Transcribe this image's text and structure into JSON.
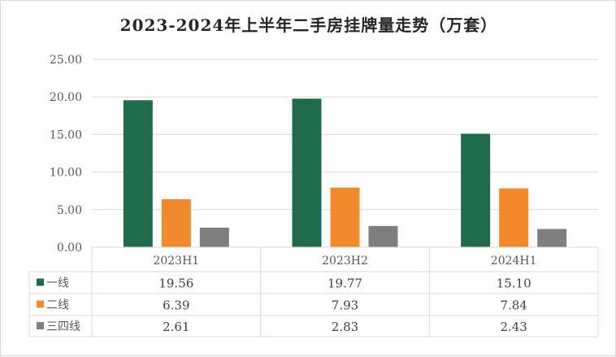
{
  "chart_data": {
    "type": "bar",
    "title": "2023-2024年上半年二手房挂牌量走势（万套）",
    "categories": [
      "2023H1",
      "2023H2",
      "2024H1"
    ],
    "series": [
      {
        "name": "一线",
        "values": [
          19.56,
          19.77,
          15.1
        ],
        "display": [
          "19.56",
          "19.77",
          "15.10"
        ],
        "color": "#1f6b4a"
      },
      {
        "name": "二线",
        "values": [
          6.39,
          7.93,
          7.84
        ],
        "display": [
          "6.39",
          "7.93",
          "7.84"
        ],
        "color": "#f08a2c"
      },
      {
        "name": "三四线",
        "values": [
          2.61,
          2.83,
          2.43
        ],
        "display": [
          "2.61",
          "2.83",
          "2.43"
        ],
        "color": "#7f7f7f"
      }
    ],
    "ylim": [
      0,
      25
    ],
    "yticks": [
      "0.00",
      "5.00",
      "10.00",
      "15.00",
      "20.00",
      "25.00"
    ],
    "grid": true,
    "legend": "data-table"
  }
}
